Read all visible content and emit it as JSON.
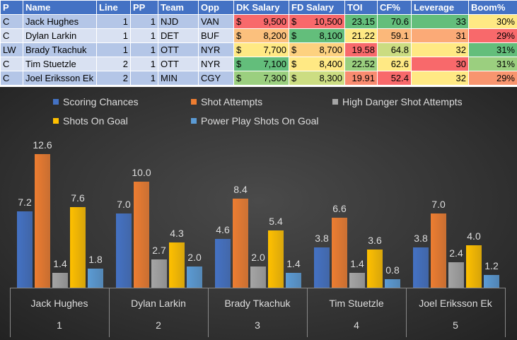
{
  "table": {
    "headers": [
      "P",
      "Name",
      "Line",
      "PP",
      "Team",
      "Opp",
      "DK Salary",
      "FD Salary",
      "TOI",
      "CF%",
      "Leverage",
      "Boom%"
    ],
    "rows": [
      {
        "p": "C",
        "name": "Jack Hughes",
        "line": "1",
        "pp": "1",
        "team": "NJD",
        "opp": "VAN",
        "dk": "9,500",
        "fd": "10,500",
        "toi": "23.15",
        "cf": "70.6",
        "lev": "33",
        "boom": "30%"
      },
      {
        "p": "C",
        "name": "Dylan Larkin",
        "line": "1",
        "pp": "1",
        "team": "DET",
        "opp": "BUF",
        "dk": "8,200",
        "fd": "8,100",
        "toi": "21.22",
        "cf": "59.1",
        "lev": "31",
        "boom": "29%"
      },
      {
        "p": "LW",
        "name": "Brady Tkachuk",
        "line": "1",
        "pp": "1",
        "team": "OTT",
        "opp": "NYR",
        "dk": "7,700",
        "fd": "8,700",
        "toi": "19.58",
        "cf": "64.8",
        "lev": "32",
        "boom": "31%"
      },
      {
        "p": "C",
        "name": "Tim Stuetzle",
        "line": "2",
        "pp": "1",
        "team": "OTT",
        "opp": "NYR",
        "dk": "7,100",
        "fd": "8,400",
        "toi": "22.52",
        "cf": "62.6",
        "lev": "30",
        "boom": "31%"
      },
      {
        "p": "C",
        "name": "Joel Eriksson Ek",
        "line": "2",
        "pp": "1",
        "team": "MIN",
        "opp": "CGY",
        "dk": "7,300",
        "fd": "8,300",
        "toi": "19.91",
        "cf": "52.4",
        "lev": "32",
        "boom": "29%"
      }
    ],
    "currency": "$",
    "cell_colors": {
      "dk": [
        "#F8696B",
        "#FBC07D",
        "#FFE984",
        "#63BE7B",
        "#9BCF7F"
      ],
      "fd": [
        "#F8696B",
        "#63BE7B",
        "#FDD17F",
        "#FFE984",
        "#CCDD82"
      ],
      "toi": [
        "#63BE7B",
        "#FFE984",
        "#F8696B",
        "#9BCF7F",
        "#F98B70"
      ],
      "cf": [
        "#63BE7B",
        "#FBB87A",
        "#CBDC81",
        "#FFE984",
        "#F8696B"
      ],
      "lev": [
        "#63BE7B",
        "#FBAA77",
        "#FFE984",
        "#F8696B",
        "#FFE984"
      ],
      "boom": [
        "#FFE984",
        "#F8696B",
        "#63BE7B",
        "#9BCF7F",
        "#F8956F"
      ]
    }
  },
  "chart_data": {
    "type": "bar",
    "categories": [
      "Jack Hughes",
      "Dylan Larkin",
      "Brady Tkachuk",
      "Tim Stuetzle",
      "Joel Eriksson Ek"
    ],
    "category_index": [
      "1",
      "2",
      "3",
      "4",
      "5"
    ],
    "series": [
      {
        "name": "Scoring Chances",
        "color": "#4472C4",
        "values": [
          7.2,
          7.0,
          4.6,
          3.8,
          3.8
        ]
      },
      {
        "name": "Shot Attempts",
        "color": "#ED7D31",
        "values": [
          12.6,
          10.0,
          8.4,
          6.6,
          7.0
        ]
      },
      {
        "name": "High Danger Shot Attempts",
        "color": "#A5A5A5",
        "values": [
          1.4,
          2.7,
          2.0,
          1.4,
          2.4
        ]
      },
      {
        "name": "Shots On Goal",
        "color": "#FFC000",
        "values": [
          7.6,
          4.3,
          5.4,
          3.6,
          4.0
        ]
      },
      {
        "name": "Power Play Shots On Goal",
        "color": "#5B9BD5",
        "values": [
          1.8,
          2.0,
          1.4,
          0.8,
          1.2
        ]
      }
    ],
    "legend": "top",
    "ylim": [
      0,
      13.5
    ]
  }
}
